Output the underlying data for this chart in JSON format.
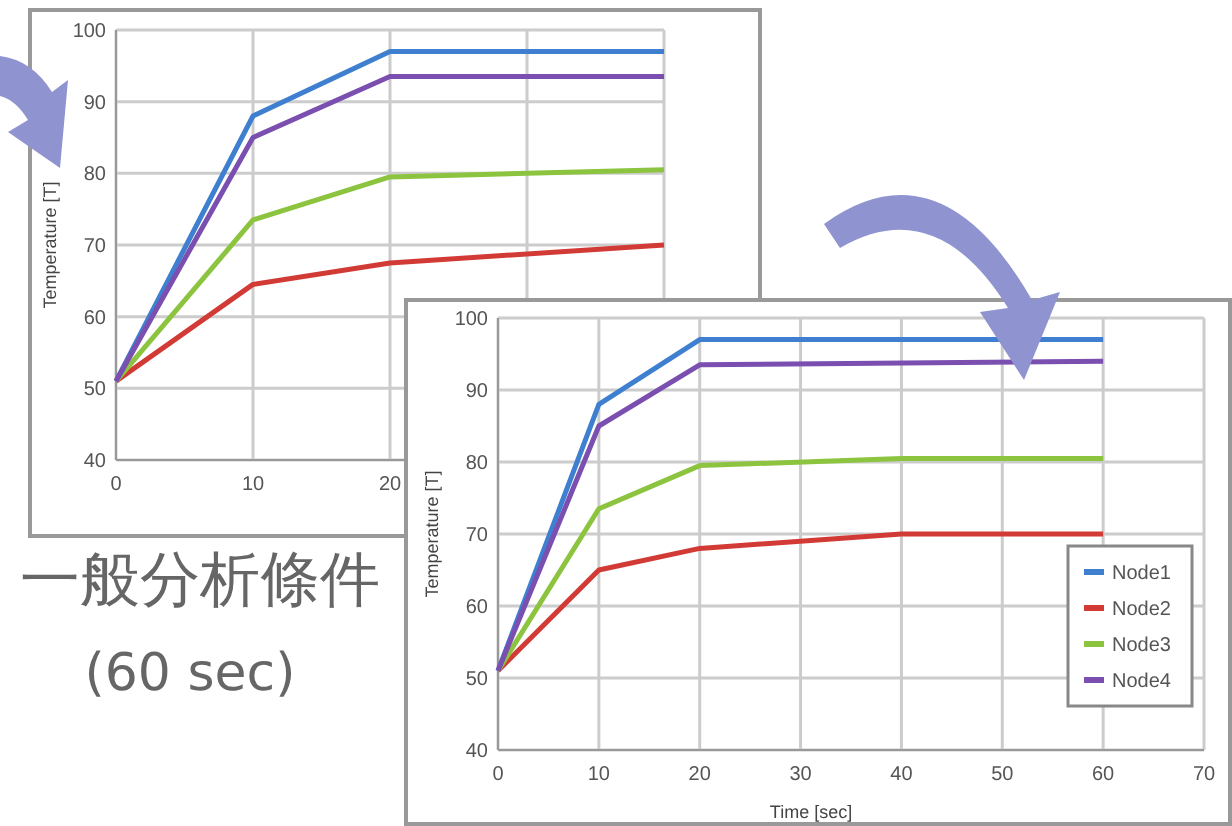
{
  "chart_data": [
    {
      "type": "line",
      "ylabel": "Temperature [T]",
      "xlim": [
        0,
        40
      ],
      "xticks": [
        0,
        10,
        20,
        {
          "value": 30,
          "label": null
        },
        {
          "value": 40,
          "label": null
        }
      ],
      "ylim": [
        40,
        100
      ],
      "yticks": [
        40,
        50,
        60,
        70,
        80,
        90,
        100
      ],
      "grid": true,
      "legend": false,
      "marker": "none",
      "line_style": "solid",
      "annotations": [
        "一般分析條件",
        "(60 sec)"
      ],
      "series": [
        {
          "color": "#3f7fd0",
          "x": [
            0,
            10,
            20,
            40
          ],
          "values": [
            51,
            88,
            97,
            97
          ]
        },
        {
          "color": "#d23a35",
          "x": [
            0,
            10,
            20,
            40
          ],
          "values": [
            51,
            64.5,
            67.5,
            70
          ]
        },
        {
          "color": "#8dc43f",
          "x": [
            0,
            10,
            20,
            40
          ],
          "values": [
            51,
            73.5,
            79.5,
            80.5
          ]
        },
        {
          "color": "#7a4fb0",
          "x": [
            0,
            10,
            20,
            40
          ],
          "values": [
            51,
            85,
            93.5,
            93.5
          ]
        }
      ]
    },
    {
      "type": "line",
      "ylabel": "Temperature [T]",
      "xlabel": "Time [sec]",
      "xlim": [
        0,
        70
      ],
      "xticks": [
        0,
        10,
        20,
        30,
        40,
        50,
        60,
        70
      ],
      "ylim": [
        40,
        100
      ],
      "yticks": [
        40,
        50,
        60,
        70,
        80,
        90,
        100
      ],
      "grid": true,
      "legend": "bottom right",
      "marker": "none",
      "line_style": "solid",
      "series": [
        {
          "name": "Node1",
          "color": "#3f7fd0",
          "x": [
            0,
            10,
            20,
            60
          ],
          "values": [
            51,
            88,
            97,
            97
          ]
        },
        {
          "name": "Node2",
          "color": "#d23a35",
          "x": [
            0,
            10,
            20,
            40,
            60
          ],
          "values": [
            51,
            65,
            68,
            70,
            70
          ]
        },
        {
          "name": "Node3",
          "color": "#8dc43f",
          "x": [
            0,
            10,
            20,
            40,
            60
          ],
          "values": [
            51,
            73.5,
            79.5,
            80.5,
            80.5
          ]
        },
        {
          "name": "Node4",
          "color": "#7a4fb0",
          "x": [
            0,
            10,
            20,
            60
          ],
          "values": [
            51,
            85,
            93.5,
            94
          ]
        }
      ]
    }
  ]
}
